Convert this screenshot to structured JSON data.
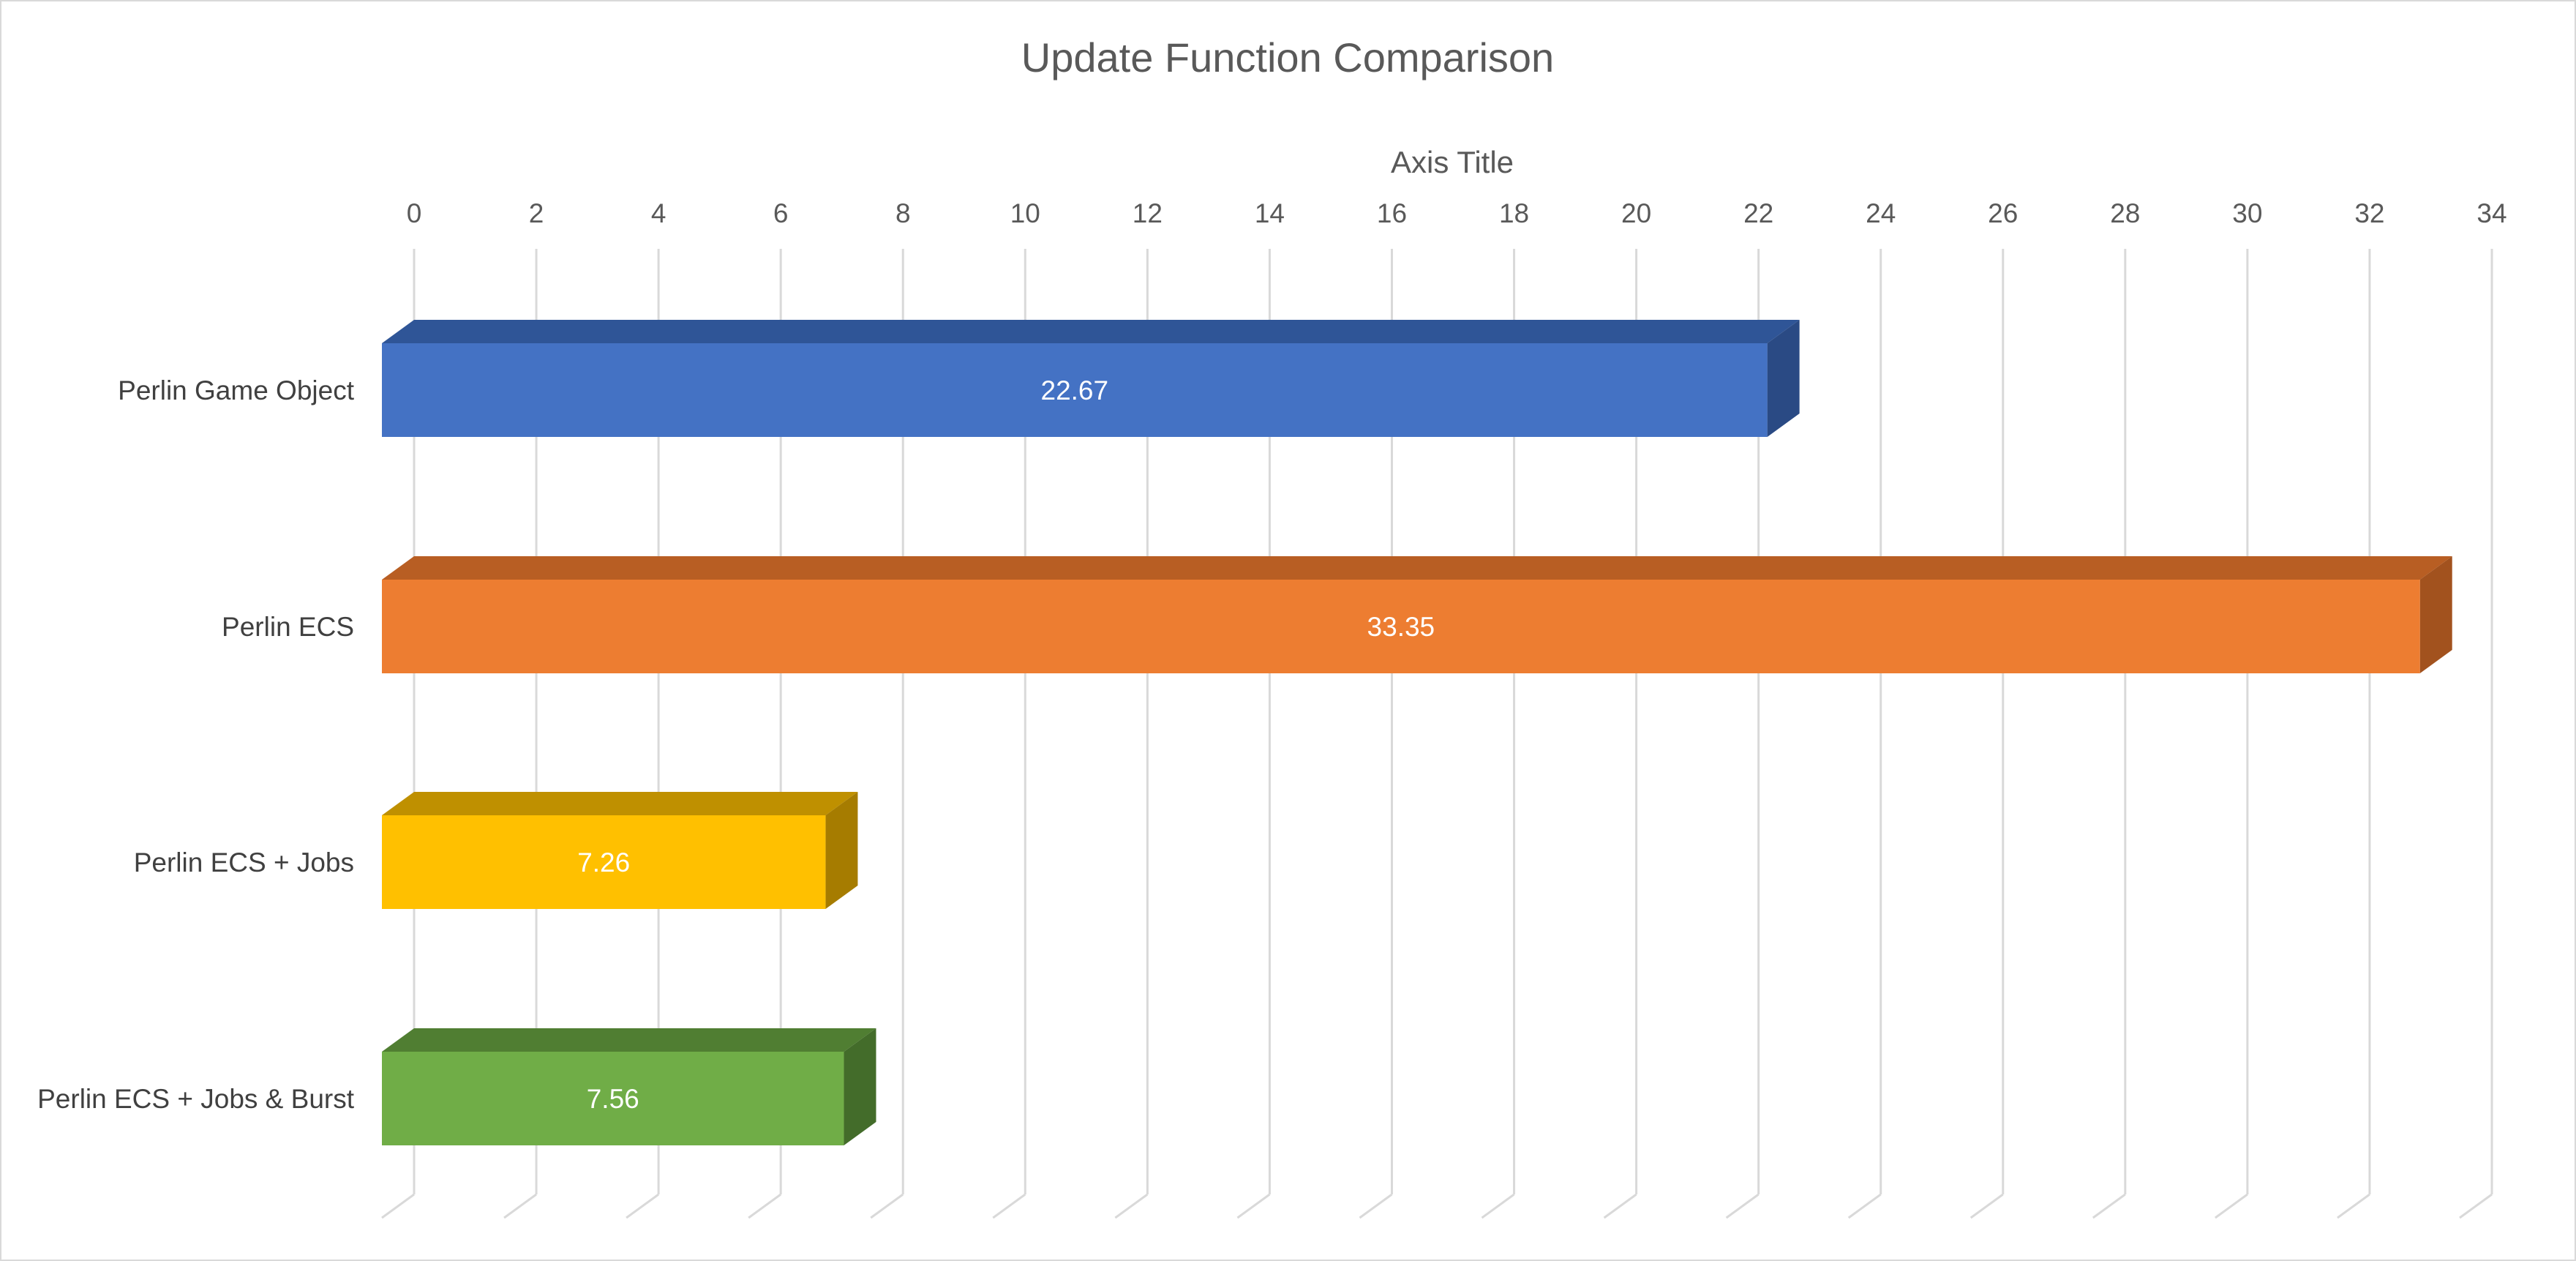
{
  "chart_data": {
    "type": "bar",
    "orientation": "horizontal",
    "style": "3d",
    "title": "Update Function Comparison",
    "xlabel": "Axis Title",
    "ylabel": "",
    "xlim": [
      0,
      34
    ],
    "tick_step": 2,
    "tick_labels": [
      "0",
      "2",
      "4",
      "6",
      "8",
      "10",
      "12",
      "14",
      "16",
      "18",
      "20",
      "22",
      "24",
      "26",
      "28",
      "30",
      "32",
      "34"
    ],
    "grid": true,
    "axis_position": "top",
    "legend": "none",
    "categories": [
      "Perlin Game Object",
      "Perlin ECS",
      "Perlin ECS + Jobs",
      "Perlin ECS + Jobs & Burst"
    ],
    "values": [
      22.67,
      33.35,
      7.26,
      7.56
    ],
    "data_labels": [
      "22.67",
      "33.35",
      "7.26",
      "7.56"
    ],
    "colors": [
      "#4472C4",
      "#ED7D31",
      "#FFC000",
      "#70AD47"
    ],
    "top_colors": [
      "#2F5597",
      "#B85E23",
      "#BF9000",
      "#507E32"
    ],
    "side_colors": [
      "#2A4A84",
      "#A2521E",
      "#A67C00",
      "#436C2A"
    ]
  }
}
